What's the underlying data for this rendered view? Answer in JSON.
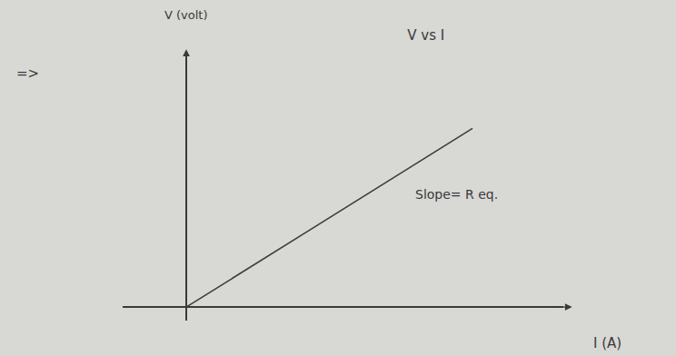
{
  "chart_data": {
    "type": "line",
    "title": "V vs I",
    "x_label": "I (A)",
    "y_label": "V (volt)",
    "x": [
      0,
      6.3
    ],
    "values": [
      0,
      3.96
    ],
    "color": "#3a3a3a",
    "xlim": [
      -1.4,
      8.3
    ],
    "ylim": [
      -0.3,
      5.6
    ],
    "xticks": [],
    "yticks": [],
    "tick_labels": false,
    "grid": false,
    "annotations": [
      "Slope= R eq.",
      "=>"
    ]
  }
}
